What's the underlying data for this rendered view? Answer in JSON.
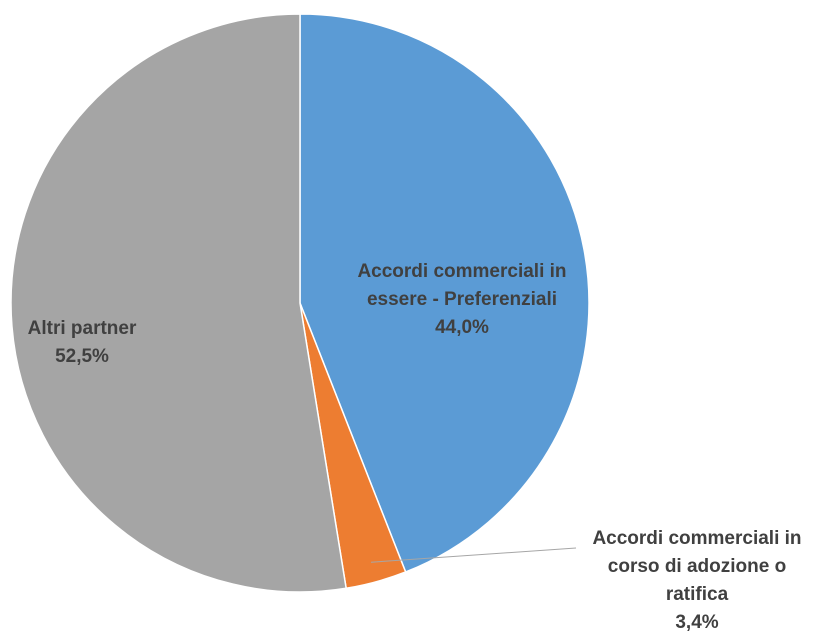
{
  "chart_data": {
    "type": "pie",
    "title": "",
    "slices": [
      {
        "label_lines": [
          "Accordi commerciali in",
          "essere - Preferenziali"
        ],
        "value": 44.0,
        "value_label": "44,0%",
        "color": "#5B9BD5"
      },
      {
        "label_lines": [
          "Accordi commerciali in",
          "corso di adozione o",
          "ratifica"
        ],
        "value": 3.4,
        "value_label": "3,4%",
        "color": "#ED7D31"
      },
      {
        "label_lines": [
          "Altri partner"
        ],
        "value": 52.5,
        "value_label": "52,5%",
        "color": "#A5A5A5"
      }
    ],
    "start_angle_deg": 0,
    "direction": "clockwise",
    "legend": "none",
    "label_color": "#404040"
  }
}
